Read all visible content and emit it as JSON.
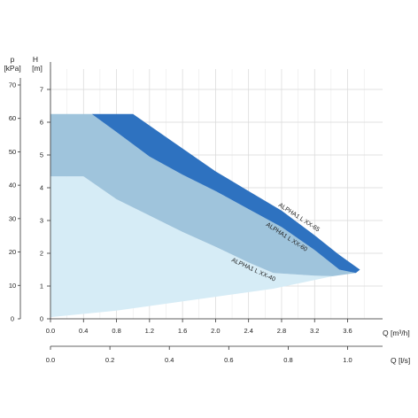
{
  "chart_data": {
    "type": "area",
    "axes": {
      "left_outer": {
        "symbol": "p",
        "unit": "[kPa]",
        "ticks": [
          "0",
          "10",
          "20",
          "30",
          "40",
          "50",
          "60",
          "70"
        ]
      },
      "left_inner": {
        "symbol": "H",
        "unit": "[m]",
        "ticks": [
          "0",
          "1",
          "2",
          "3",
          "4",
          "5",
          "6",
          "7"
        ],
        "range": [
          0,
          7
        ]
      },
      "bottom_primary": {
        "label": "Q [m³/h]",
        "ticks": [
          "0.0",
          "0.4",
          "0.8",
          "1.2",
          "1.6",
          "2.0",
          "2.4",
          "2.8",
          "3.2",
          "3.6"
        ],
        "range": [
          0,
          4.0
        ]
      },
      "bottom_secondary": {
        "label": "Q [l/s]",
        "ticks": [
          "0.0",
          "0.2",
          "0.4",
          "0.6",
          "0.8",
          "1.0"
        ]
      }
    },
    "grid": true,
    "series": [
      {
        "name": "ALPHA1 L XX-40",
        "color": "#d6ecf6",
        "points": [
          [
            0,
            4.35
          ],
          [
            0.4,
            4.35
          ],
          [
            0.8,
            3.65
          ],
          [
            1.2,
            3.15
          ],
          [
            1.6,
            2.65
          ],
          [
            2.0,
            2.2
          ],
          [
            2.4,
            1.72
          ],
          [
            2.7,
            1.4
          ],
          [
            3.2,
            1.32
          ],
          [
            3.42,
            1.3
          ],
          [
            2.7,
            0.92
          ],
          [
            0.8,
            0.25
          ],
          [
            0,
            0.05
          ]
        ]
      },
      {
        "name": "ALPHA1 L XX-60",
        "color": "#9fc4dc",
        "points": [
          [
            0,
            6.25
          ],
          [
            0.5,
            6.25
          ],
          [
            0.8,
            5.7
          ],
          [
            1.2,
            4.95
          ],
          [
            1.6,
            4.4
          ],
          [
            2.0,
            3.9
          ],
          [
            2.4,
            3.35
          ],
          [
            2.8,
            2.8
          ],
          [
            3.2,
            2.1
          ],
          [
            3.5,
            1.5
          ],
          [
            3.7,
            1.4
          ],
          [
            3.42,
            1.3
          ],
          [
            3.2,
            1.32
          ],
          [
            2.7,
            1.4
          ],
          [
            2.4,
            1.72
          ],
          [
            2.0,
            2.2
          ],
          [
            1.6,
            2.65
          ],
          [
            1.2,
            3.15
          ],
          [
            0.8,
            3.65
          ],
          [
            0.4,
            4.35
          ],
          [
            0,
            4.35
          ]
        ]
      },
      {
        "name": "ALPHA1 L XX-65",
        "color": "#2e72c0",
        "points": [
          [
            0.5,
            6.25
          ],
          [
            1.0,
            6.25
          ],
          [
            1.4,
            5.55
          ],
          [
            2.0,
            4.5
          ],
          [
            2.4,
            3.9
          ],
          [
            2.8,
            3.3
          ],
          [
            3.2,
            2.55
          ],
          [
            3.5,
            1.95
          ],
          [
            3.75,
            1.5
          ],
          [
            3.7,
            1.4
          ],
          [
            3.5,
            1.5
          ],
          [
            3.2,
            2.1
          ],
          [
            2.8,
            2.8
          ],
          [
            2.4,
            3.35
          ],
          [
            2.0,
            3.9
          ],
          [
            1.6,
            4.4
          ],
          [
            1.2,
            4.95
          ],
          [
            0.8,
            5.7
          ],
          [
            0.5,
            6.25
          ]
        ]
      }
    ],
    "annotations": [
      "ALPHA1 L XX-65",
      "ALPHA1 L XX-60",
      "ALPHA1 L XX-40"
    ]
  }
}
